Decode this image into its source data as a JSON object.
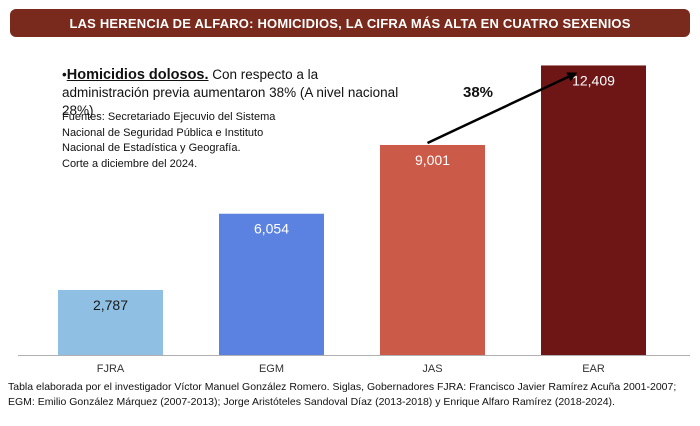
{
  "header": {
    "title": "LAS HERENCIA DE ALFARO: HOMICIDIOS, LA CIFRA MÁS ALTA EN CUATRO SEXENIOS"
  },
  "note": {
    "bullet": "•",
    "lead": "Homicidios dolosos.",
    "text": " Con respecto a la administración previa aumentaron 38% (A nivel nacional 28%)"
  },
  "sources": [
    "Fuentes: Secretariado Ejecuvio del Sistema",
    "Nacional de  Seguridad Pública e Instituto",
    "Nacional de Estadística y Geografía.",
    "Corte a diciembre del 2024."
  ],
  "chart_data": {
    "type": "bar",
    "categories": [
      "FJRA",
      "EGM",
      "JAS",
      "EAR"
    ],
    "values": [
      2787,
      6054,
      9001,
      12409
    ],
    "value_labels": [
      "2,787",
      "6,054",
      "9,001",
      "12,409"
    ],
    "colors": [
      "#8fc0e3",
      "#5b82e0",
      "#cc5a48",
      "#6e1616"
    ],
    "ylim": [
      0,
      13500
    ],
    "annotation": "38%",
    "grid": false
  },
  "footer": [
    "Tabla elaborada por el investigador Víctor Manuel González Romero. Siglas, Gobernadores FJRA: Francisco Javier Ramírez Acuña  2001-2007;",
    "EGM: Emilio González Márquez (2007-2013); Jorge Aristóteles Sandoval Díaz (2013-2018) y Enrique Alfaro Ramírez (2018-2024)."
  ]
}
